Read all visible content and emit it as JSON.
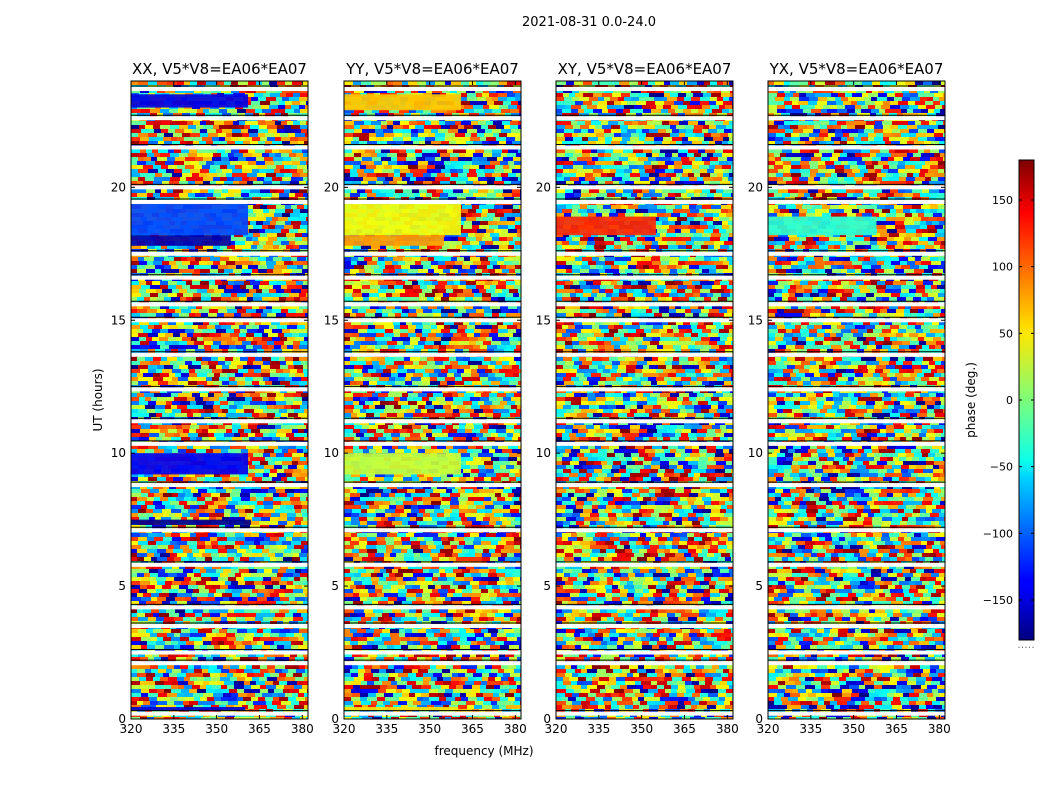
{
  "figure": {
    "suptitle": "2021-08-31 0.0-24.0",
    "cbar_extra": "....."
  },
  "chart_data": {
    "type": "heatmap",
    "title": "2021-08-31 0.0-24.0",
    "xlabel": "frequency (MHz)",
    "ylabel": "UT (hours)",
    "xlim": [
      320,
      382
    ],
    "ylim": [
      0,
      24
    ],
    "xticks": [
      320,
      335,
      350,
      365,
      380
    ],
    "yticks": [
      0,
      5,
      10,
      15,
      20
    ],
    "colorbar": {
      "label": "phase (deg.)",
      "range": [
        -180,
        180
      ],
      "ticks": [
        -150,
        -100,
        -50,
        0,
        50,
        100,
        150
      ],
      "colormap": "jet"
    },
    "panels": [
      {
        "title": "XX, V5*V8=EA06*EA07"
      },
      {
        "title": "YY, V5*V8=EA06*EA07"
      },
      {
        "title": "XY, V5*V8=EA06*EA07"
      },
      {
        "title": "YX, V5*V8=EA06*EA07"
      }
    ],
    "coherent_bands": [
      {
        "panel": 0,
        "t_start": 23.0,
        "t_end": 23.5,
        "phase": -145,
        "f_end": 361
      },
      {
        "panel": 0,
        "t_start": 18.2,
        "t_end": 19.4,
        "phase": -110,
        "f_end": 361
      },
      {
        "panel": 0,
        "t_start": 17.8,
        "t_end": 18.2,
        "phase": -165,
        "f_end": 355
      },
      {
        "panel": 0,
        "t_start": 9.2,
        "t_end": 10.0,
        "phase": -140,
        "f_end": 361
      },
      {
        "panel": 0,
        "t_start": 7.3,
        "t_end": 7.5,
        "phase": -175,
        "f_end": 362
      },
      {
        "panel": 0,
        "t_start": 0.3,
        "t_end": 0.45,
        "phase": -150,
        "f_end": 360
      },
      {
        "panel": 1,
        "t_start": 22.9,
        "t_end": 23.5,
        "phase": 65,
        "f_end": 361
      },
      {
        "panel": 1,
        "t_start": 18.2,
        "t_end": 19.4,
        "phase": 40,
        "f_end": 361
      },
      {
        "panel": 1,
        "t_start": 17.8,
        "t_end": 18.2,
        "phase": 80,
        "f_end": 355
      },
      {
        "panel": 1,
        "t_start": 9.2,
        "t_end": 10.0,
        "phase": 25,
        "f_end": 361
      },
      {
        "panel": 1,
        "t_start": 0.3,
        "t_end": 0.45,
        "phase": 55,
        "f_end": 360
      },
      {
        "panel": 2,
        "t_start": 18.2,
        "t_end": 18.9,
        "phase": 120,
        "f_end": 355
      },
      {
        "panel": 3,
        "t_start": 18.2,
        "t_end": 18.9,
        "phase": -30,
        "f_end": 358
      }
    ],
    "flagged_gaps_hours": [
      23.7,
      22.6,
      21.5,
      20.0,
      19.45,
      17.5,
      16.6,
      15.6,
      15.0,
      13.7,
      12.4,
      11.2,
      10.35,
      8.8,
      7.1,
      5.8,
      4.2,
      3.5,
      2.5,
      2.1,
      0.2
    ]
  }
}
